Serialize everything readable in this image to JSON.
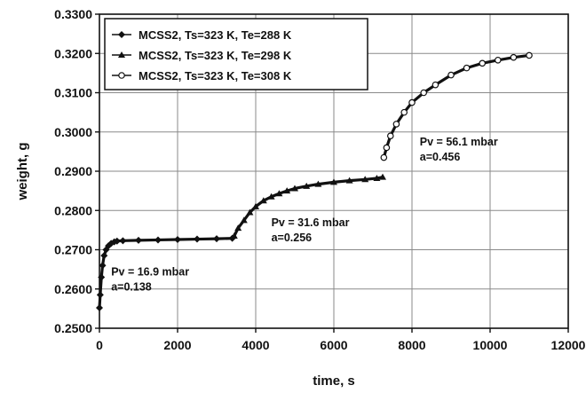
{
  "chart_data": {
    "type": "scatter",
    "xlabel": "time, s",
    "ylabel": "weight, g",
    "xlim": [
      0,
      12000
    ],
    "ylim": [
      0.25,
      0.33
    ],
    "x_ticks": [
      "0",
      "2000",
      "4000",
      "6000",
      "8000",
      "10000",
      "12000"
    ],
    "y_ticks": [
      "0.2500",
      "0.2600",
      "0.2700",
      "0.2800",
      "0.2900",
      "0.3000",
      "0.3100",
      "0.3200",
      "0.3300"
    ],
    "grid": true,
    "legend_position": "top-left",
    "series": [
      {
        "name": "MCSS2, Ts=323 K, Te=288 K",
        "marker": "diamond",
        "x": [
          0,
          20,
          50,
          80,
          120,
          170,
          230,
          300,
          380,
          450,
          600,
          1000,
          1500,
          2000,
          2500,
          3000,
          3400
        ],
        "y": [
          0.2552,
          0.2585,
          0.263,
          0.266,
          0.2685,
          0.27,
          0.271,
          0.2716,
          0.272,
          0.2722,
          0.2723,
          0.2724,
          0.2725,
          0.2726,
          0.2727,
          0.2728,
          0.2729
        ]
      },
      {
        "name": "MCSS2, Ts=323 K, Te=298 K",
        "marker": "triangle",
        "x": [
          3450,
          3550,
          3700,
          3850,
          4000,
          4200,
          4400,
          4600,
          4800,
          5000,
          5300,
          5600,
          6000,
          6400,
          6800,
          7100,
          7250
        ],
        "y": [
          0.2735,
          0.2755,
          0.2775,
          0.2795,
          0.281,
          0.2825,
          0.2835,
          0.2843,
          0.285,
          0.2856,
          0.2862,
          0.2867,
          0.2872,
          0.2876,
          0.2879,
          0.2882,
          0.2885
        ]
      },
      {
        "name": "MCSS2, Ts=323 K, Te=308 K",
        "marker": "circle",
        "x": [
          7280,
          7350,
          7450,
          7600,
          7800,
          8000,
          8300,
          8600,
          9000,
          9400,
          9800,
          10200,
          10600,
          11000
        ],
        "y": [
          0.2935,
          0.296,
          0.299,
          0.302,
          0.305,
          0.3075,
          0.31,
          0.312,
          0.3145,
          0.3163,
          0.3175,
          0.3183,
          0.319,
          0.3195
        ]
      }
    ],
    "annotations": [
      {
        "lines": [
          "Pv = 16.9 mbar",
          "a=0.138"
        ],
        "x": 300,
        "y": 0.2635
      },
      {
        "lines": [
          "Pv =  31.6 mbar",
          "a=0.256"
        ],
        "x": 4400,
        "y": 0.276
      },
      {
        "lines": [
          "Pv = 56.1 mbar",
          "a=0.456"
        ],
        "x": 8200,
        "y": 0.2965
      }
    ]
  }
}
